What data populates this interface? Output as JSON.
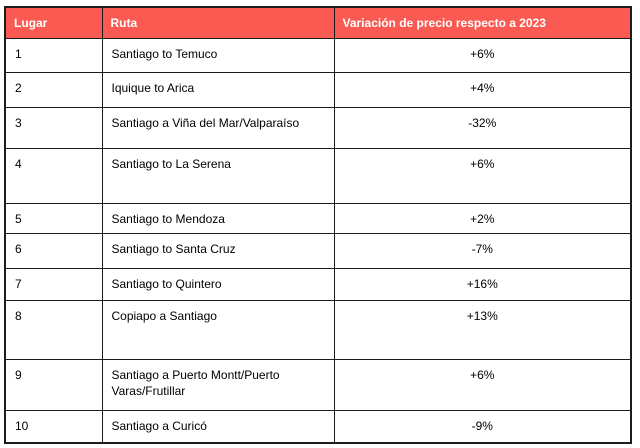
{
  "colors": {
    "header_bg": "#fa5a52",
    "header_text": "#ffffff",
    "border": "#1c1c1c",
    "body_text": "#000000"
  },
  "table": {
    "columns": [
      {
        "key": "lugar",
        "label": "Lugar"
      },
      {
        "key": "ruta",
        "label": "Ruta"
      },
      {
        "key": "variacion",
        "label": "Variación de precio respecto a 2023"
      }
    ],
    "rows": [
      {
        "lugar": "1",
        "ruta": "Santiago to Temuco",
        "variacion": "+6%"
      },
      {
        "lugar": "2",
        "ruta": "Iquique to Arica",
        "variacion": "+4%"
      },
      {
        "lugar": "3",
        "ruta": "Santiago a Viña del Mar/Valparaíso",
        "variacion": "-32%"
      },
      {
        "lugar": "4",
        "ruta": "Santiago to La Serena",
        "variacion": "+6%"
      },
      {
        "lugar": "5",
        "ruta": "Santiago to Mendoza",
        "variacion": "+2%"
      },
      {
        "lugar": "6",
        "ruta": "Santiago to Santa Cruz",
        "variacion": "-7%"
      },
      {
        "lugar": "7",
        "ruta": "Santiago to Quintero",
        "variacion": "+16%"
      },
      {
        "lugar": "8",
        "ruta": "Copiapo a Santiago",
        "variacion": "+13%"
      },
      {
        "lugar": "9",
        "ruta": "Santiago a Puerto Montt/Puerto Varas/Frutillar",
        "variacion": "+6%"
      },
      {
        "lugar": "10",
        "ruta": "Santiago a Curicó",
        "variacion": "-9%"
      }
    ]
  }
}
